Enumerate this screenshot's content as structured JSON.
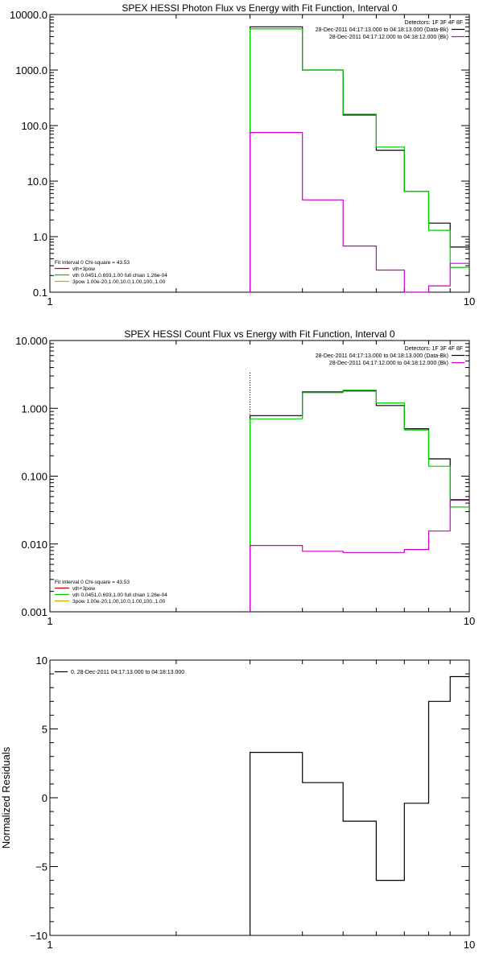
{
  "chart_data": [
    {
      "type": "line",
      "title": "SPEX HESSI Photon Flux vs Energy with Fit Function, Interval 0",
      "x_scale": "log",
      "y_scale": "log",
      "xlim": [
        1,
        10
      ],
      "ylim": [
        0.1,
        10000
      ],
      "x_tick_labels": [
        "1",
        "10"
      ],
      "y_ticks": [
        0.1,
        1,
        10,
        100,
        1000,
        10000
      ],
      "y_tick_labels": [
        "0.1",
        "1.0",
        "10.0",
        "100.0",
        "1000.0",
        "10000.0"
      ],
      "vline_x": 3,
      "bin_edges": [
        3,
        4,
        5,
        6,
        7,
        8,
        9,
        10
      ],
      "legend_top": {
        "header": "Detectors: 1F 3F 4F 8F",
        "lines": [
          {
            "text": "28-Dec-2011 04:17:13.000 to 04:18:13.000 (Data-Bk)",
            "color": "#000000"
          },
          {
            "text": "28-Dec-2011 04:17:12.000 to 04:18:12.000 (Bk)",
            "color": "#cc00cc"
          }
        ]
      },
      "legend_bottom": {
        "header": "Fit Interval 0   Chi-square = 43.53",
        "lines": [
          {
            "text": "vth+3pow",
            "color": "#cc0000"
          },
          {
            "text": "vth 0.0451,0.693,1.00  full chian 1.26e-04",
            "color": "#00cc00"
          },
          {
            "text": "3pow 1.00e-20,1.00,10.0,1.00,100.,1.00",
            "color": "#ccaa00"
          }
        ]
      },
      "series": [
        {
          "color": "#000000",
          "values": [
            6000,
            1000,
            155,
            36,
            6.5,
            1.75,
            0.65
          ]
        },
        {
          "color": "#00cc00",
          "values": [
            5500,
            1000,
            160,
            41,
            6.5,
            1.3,
            0.28
          ]
        },
        {
          "color": "#cc00cc",
          "values": [
            75,
            4.6,
            0.68,
            0.25,
            0.1,
            0.13,
            0.33
          ]
        }
      ]
    },
    {
      "type": "line",
      "title": "SPEX HESSI Count Flux vs Energy with Fit Function, Interval 0",
      "x_scale": "log",
      "y_scale": "log",
      "xlim": [
        1,
        10
      ],
      "ylim": [
        0.001,
        10
      ],
      "x_tick_labels": [
        "1",
        "10"
      ],
      "y_ticks": [
        0.001,
        0.01,
        0.1,
        1,
        10
      ],
      "y_tick_labels": [
        "0.001",
        "0.010",
        "0.100",
        "1.000",
        "10.000"
      ],
      "vline_x": 3,
      "bin_edges": [
        3,
        4,
        5,
        6,
        7,
        8,
        9,
        10
      ],
      "legend_top": {
        "header": "Detectors: 1F 3F 4F 8F",
        "lines": [
          {
            "text": "28-Dec-2011 04:17:13.000 to 04:18:13.000 (Data-Bk)",
            "color": "#000000"
          },
          {
            "text": "28-Dec-2011 04:17:12.000 to 04:18:12.000 (Bk)",
            "color": "#cc00cc"
          }
        ]
      },
      "legend_bottom": {
        "header": "Fit Interval 0   Chi-square = 43.53",
        "lines": [
          {
            "text": "vth+3pow",
            "color": "#cc0000"
          },
          {
            "text": "vth 0.0451,0.693,1.00  full chian 1.26e-04",
            "color": "#00cc00"
          },
          {
            "text": "3pow 1.00e-20,1.00,10.0,1.00,100.,1.00",
            "color": "#ccaa00"
          }
        ]
      },
      "series": [
        {
          "color": "#000000",
          "values": [
            0.78,
            1.75,
            1.8,
            1.1,
            0.5,
            0.18,
            0.045
          ]
        },
        {
          "color": "#00cc00",
          "values": [
            0.7,
            1.7,
            1.85,
            1.2,
            0.48,
            0.14,
            0.035
          ]
        },
        {
          "color": "#cc00cc",
          "values": [
            0.0095,
            0.0078,
            0.0075,
            0.0075,
            0.0083,
            0.0155,
            0.044
          ]
        }
      ]
    },
    {
      "type": "line",
      "title": "",
      "ylabel": "Normalized Residuals",
      "x_scale": "log",
      "y_scale": "linear",
      "xlim": [
        1,
        10
      ],
      "ylim": [
        -10,
        10
      ],
      "x_tick_labels": [
        "1",
        "10"
      ],
      "y_ticks": [
        -10,
        -5,
        0,
        5,
        10
      ],
      "y_tick_labels": [
        "−10",
        "−5",
        "0",
        "5",
        "10"
      ],
      "bin_edges": [
        3,
        4,
        5,
        6,
        7,
        8,
        9,
        10
      ],
      "legend_top_left": {
        "lines": [
          {
            "text": "0. 28-Dec-2011 04:17:13.000 to 04:18:13.000",
            "color": "#000000"
          }
        ]
      },
      "series": [
        {
          "color": "#000000",
          "values": [
            3.3,
            1.1,
            -1.7,
            -6.0,
            -0.4,
            7.0,
            8.8
          ]
        }
      ]
    }
  ]
}
